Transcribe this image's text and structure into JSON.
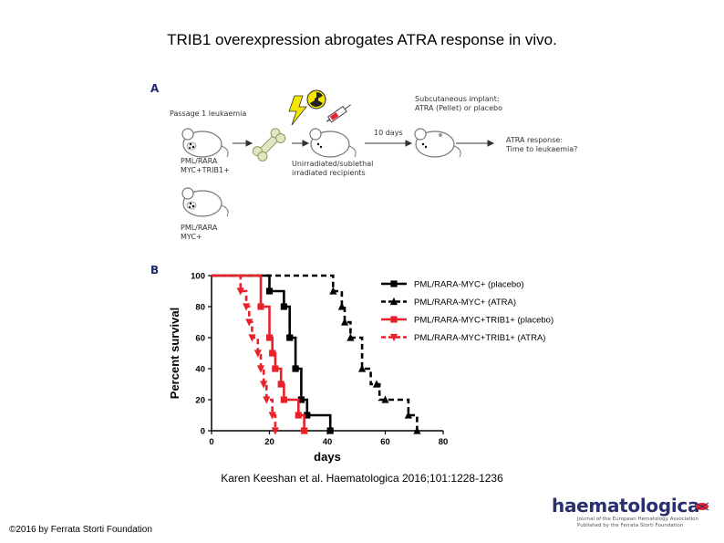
{
  "slide_title": "TRIB1 overexpression abrogates ATRA response in vivo.",
  "panel_a": {
    "letter": "A",
    "passage_label": "Passage 1 leukaemia",
    "mouse1_label_l1": "PML/RARA",
    "mouse1_label_l2": "MYC+TRIB1+",
    "mouse2_label_l1": "PML/RARA",
    "mouse2_label_l2": "MYC+",
    "recipients_label_l1": "Unirradiated/sublethal",
    "recipients_label_l2": "irradiated recipients",
    "days_label": "10 days",
    "implant_label_l1": "Subcutaneous implant:",
    "implant_label_l2": "ATRA (Pellet) or placebo",
    "response_label_l1": "ATRA response:",
    "response_label_l2": "Time to leukaemia?"
  },
  "panel_b": {
    "letter": "B"
  },
  "chart_data": {
    "type": "line",
    "step": true,
    "xlabel": "days",
    "ylabel": "Percent survival",
    "xlim": [
      0,
      80
    ],
    "ylim": [
      0,
      100
    ],
    "xticks": [
      0,
      20,
      40,
      60,
      80
    ],
    "yticks": [
      0,
      20,
      40,
      60,
      80,
      100
    ],
    "grid": false,
    "legend_position": "right",
    "series": [
      {
        "name": "PML/RARA-MYC+ (placebo)",
        "color": "#000000",
        "dashed": false,
        "marker": "square",
        "points": [
          [
            0,
            100
          ],
          [
            20,
            100
          ],
          [
            20,
            90
          ],
          [
            25,
            90
          ],
          [
            25,
            80
          ],
          [
            27,
            80
          ],
          [
            27,
            60
          ],
          [
            29,
            60
          ],
          [
            29,
            40
          ],
          [
            31,
            40
          ],
          [
            31,
            20
          ],
          [
            33,
            20
          ],
          [
            33,
            10
          ],
          [
            41,
            10
          ],
          [
            41,
            0
          ]
        ],
        "markers": [
          [
            20,
            90
          ],
          [
            25,
            80
          ],
          [
            27,
            60
          ],
          [
            29,
            40
          ],
          [
            31,
            20
          ],
          [
            33,
            10
          ],
          [
            41,
            0
          ]
        ]
      },
      {
        "name": "PML/RARA-MYC+ (ATRA)",
        "color": "#000000",
        "dashed": true,
        "marker": "triangle",
        "points": [
          [
            0,
            100
          ],
          [
            42,
            100
          ],
          [
            42,
            90
          ],
          [
            45,
            90
          ],
          [
            45,
            80
          ],
          [
            46,
            80
          ],
          [
            46,
            70
          ],
          [
            48,
            70
          ],
          [
            48,
            60
          ],
          [
            52,
            60
          ],
          [
            52,
            40
          ],
          [
            55,
            40
          ],
          [
            55,
            30
          ],
          [
            58,
            30
          ],
          [
            58,
            20
          ],
          [
            60,
            20
          ],
          [
            60,
            20
          ],
          [
            68,
            20
          ],
          [
            68,
            10
          ],
          [
            71,
            10
          ],
          [
            71,
            0
          ]
        ],
        "markers": [
          [
            42,
            90
          ],
          [
            45,
            80
          ],
          [
            46,
            70
          ],
          [
            48,
            60
          ],
          [
            52,
            40
          ],
          [
            57,
            30
          ],
          [
            60,
            20
          ],
          [
            68,
            10
          ],
          [
            71,
            0
          ]
        ]
      },
      {
        "name": "PML/RARA-MYC+TRIB1+ (placebo)",
        "color": "#e8212b",
        "dashed": false,
        "marker": "square",
        "points": [
          [
            0,
            100
          ],
          [
            17,
            100
          ],
          [
            17,
            80
          ],
          [
            20,
            80
          ],
          [
            20,
            60
          ],
          [
            21,
            60
          ],
          [
            21,
            50
          ],
          [
            22,
            50
          ],
          [
            22,
            40
          ],
          [
            24,
            40
          ],
          [
            24,
            30
          ],
          [
            25,
            30
          ],
          [
            25,
            20
          ],
          [
            30,
            20
          ],
          [
            30,
            10
          ],
          [
            32,
            10
          ],
          [
            32,
            0
          ]
        ],
        "markers": [
          [
            17,
            80
          ],
          [
            20,
            60
          ],
          [
            21,
            50
          ],
          [
            22,
            40
          ],
          [
            24,
            30
          ],
          [
            25,
            20
          ],
          [
            30,
            10
          ],
          [
            32,
            0
          ]
        ]
      },
      {
        "name": "PML/RARA-MYC+TRIB1+ (ATRA)",
        "color": "#e8212b",
        "dashed": true,
        "marker": "down-triangle",
        "points": [
          [
            0,
            100
          ],
          [
            10,
            100
          ],
          [
            10,
            90
          ],
          [
            12,
            90
          ],
          [
            12,
            80
          ],
          [
            13,
            80
          ],
          [
            13,
            70
          ],
          [
            14,
            70
          ],
          [
            14,
            60
          ],
          [
            16,
            60
          ],
          [
            16,
            50
          ],
          [
            17,
            50
          ],
          [
            17,
            40
          ],
          [
            18,
            40
          ],
          [
            18,
            30
          ],
          [
            19,
            30
          ],
          [
            19,
            20
          ],
          [
            21,
            20
          ],
          [
            21,
            10
          ],
          [
            22,
            10
          ],
          [
            22,
            0
          ]
        ],
        "markers": [
          [
            10,
            90
          ],
          [
            12,
            80
          ],
          [
            13,
            70
          ],
          [
            14,
            60
          ],
          [
            16,
            50
          ],
          [
            17,
            40
          ],
          [
            18,
            30
          ],
          [
            19,
            20
          ],
          [
            21,
            10
          ],
          [
            22,
            0
          ]
        ]
      }
    ]
  },
  "citation": "Karen Keeshan et al. Haematologica 2016;101:1228-1236",
  "copyright": "©2016 by Ferrata Storti Foundation",
  "logo": {
    "name": "haematologica",
    "sub_l1": "Journal of the European Hematology Association",
    "sub_l2": "Published by the Ferrata Storti Foundation"
  },
  "colors": {
    "red": "#e8212b",
    "navy": "#2a2f6e",
    "panel_letter": "#1f2a6b"
  }
}
